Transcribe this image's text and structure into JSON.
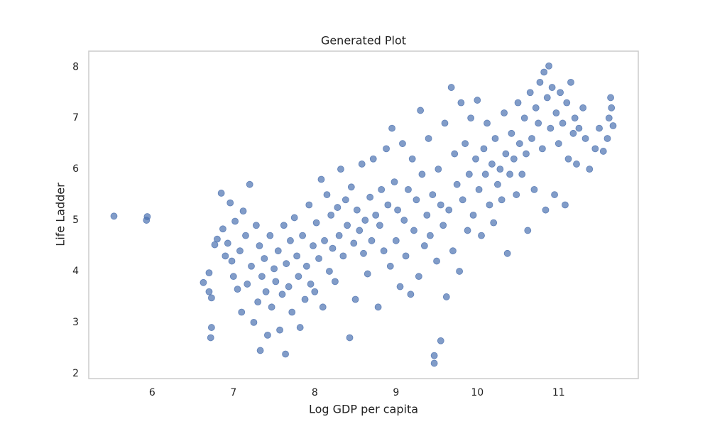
{
  "chart_data": {
    "type": "scatter",
    "title": "Generated Plot",
    "x_label": "Log GDP per capita",
    "y_label": "Life Ladder",
    "color": "#4c72b0",
    "grid": false,
    "xlim": [
      5.22,
      11.98
    ],
    "ylim": [
      1.9,
      8.31
    ],
    "xticks": [
      6,
      7,
      8,
      9,
      10,
      11
    ],
    "yticks": [
      2,
      3,
      4,
      5,
      6,
      7,
      8
    ],
    "x": [
      5.53,
      5.93,
      5.94,
      6.63,
      6.7,
      6.7,
      6.73,
      6.72,
      6.73,
      6.77,
      6.8,
      6.85,
      6.87,
      6.9,
      6.93,
      6.96,
      6.98,
      7.0,
      7.02,
      7.05,
      7.08,
      7.1,
      7.12,
      7.15,
      7.17,
      7.2,
      7.22,
      7.25,
      7.28,
      7.3,
      7.32,
      7.33,
      7.35,
      7.38,
      7.4,
      7.42,
      7.45,
      7.47,
      7.5,
      7.52,
      7.55,
      7.57,
      7.6,
      7.62,
      7.64,
      7.65,
      7.68,
      7.7,
      7.72,
      7.75,
      7.78,
      7.8,
      7.82,
      7.85,
      7.88,
      7.9,
      7.93,
      7.95,
      7.98,
      8.0,
      8.02,
      8.05,
      8.08,
      8.1,
      8.12,
      8.15,
      8.18,
      8.2,
      8.22,
      8.25,
      8.28,
      8.3,
      8.32,
      8.35,
      8.38,
      8.4,
      8.43,
      8.45,
      8.48,
      8.5,
      8.52,
      8.55,
      8.58,
      8.6,
      8.62,
      8.65,
      8.68,
      8.7,
      8.72,
      8.75,
      8.78,
      8.8,
      8.82,
      8.85,
      8.88,
      8.9,
      8.93,
      8.95,
      8.98,
      9.0,
      9.02,
      9.05,
      9.08,
      9.1,
      9.12,
      9.15,
      9.18,
      9.2,
      9.22,
      9.25,
      9.28,
      9.3,
      9.32,
      9.35,
      9.38,
      9.4,
      9.42,
      9.45,
      9.47,
      9.47,
      9.5,
      9.52,
      9.55,
      9.55,
      9.58,
      9.6,
      9.62,
      9.65,
      9.68,
      9.7,
      9.72,
      9.75,
      9.78,
      9.8,
      9.82,
      9.85,
      9.88,
      9.9,
      9.92,
      9.95,
      9.98,
      10.0,
      10.02,
      10.05,
      10.08,
      10.1,
      10.12,
      10.15,
      10.18,
      10.2,
      10.22,
      10.25,
      10.28,
      10.3,
      10.33,
      10.35,
      10.37,
      10.4,
      10.42,
      10.45,
      10.48,
      10.5,
      10.52,
      10.55,
      10.58,
      10.6,
      10.62,
      10.65,
      10.67,
      10.7,
      10.72,
      10.75,
      10.77,
      10.8,
      10.82,
      10.84,
      10.86,
      10.88,
      10.9,
      10.92,
      10.95,
      10.97,
      11.0,
      11.02,
      11.05,
      11.08,
      11.1,
      11.12,
      11.15,
      11.18,
      11.2,
      11.22,
      11.25,
      11.3,
      11.33,
      11.38,
      11.45,
      11.5,
      11.55,
      11.6,
      11.62,
      11.64,
      11.65,
      11.67
    ],
    "values": [
      5.08,
      5.0,
      5.07,
      3.78,
      3.97,
      3.6,
      3.48,
      2.7,
      2.9,
      4.52,
      4.63,
      5.53,
      4.83,
      4.3,
      4.55,
      5.34,
      4.2,
      3.9,
      4.98,
      3.65,
      4.4,
      3.2,
      5.18,
      4.7,
      3.75,
      5.7,
      4.1,
      3.0,
      4.9,
      3.4,
      4.5,
      2.45,
      3.9,
      4.25,
      3.6,
      2.75,
      4.7,
      3.3,
      4.05,
      3.8,
      4.4,
      2.85,
      3.55,
      4.9,
      2.38,
      4.15,
      3.7,
      4.6,
      3.2,
      5.05,
      4.3,
      3.9,
      2.9,
      4.7,
      3.45,
      4.1,
      5.3,
      3.75,
      4.5,
      3.6,
      4.95,
      4.25,
      5.8,
      3.3,
      4.6,
      5.5,
      4.0,
      5.1,
      4.45,
      3.8,
      5.25,
      4.7,
      6.0,
      4.3,
      5.4,
      4.9,
      2.7,
      5.65,
      4.55,
      3.45,
      5.2,
      4.8,
      6.1,
      4.35,
      5.0,
      3.95,
      5.45,
      4.6,
      6.2,
      5.1,
      3.3,
      4.9,
      5.6,
      4.4,
      6.4,
      5.3,
      4.1,
      6.8,
      5.75,
      4.6,
      5.2,
      3.7,
      6.5,
      5.0,
      4.3,
      5.6,
      3.55,
      6.2,
      4.8,
      5.4,
      3.9,
      7.15,
      5.9,
      4.5,
      5.1,
      6.6,
      4.7,
      5.5,
      2.2,
      2.35,
      4.2,
      6.0,
      2.64,
      5.3,
      4.9,
      6.9,
      3.5,
      5.2,
      7.6,
      4.4,
      6.3,
      5.7,
      4.0,
      7.3,
      5.4,
      6.5,
      4.8,
      5.9,
      7.0,
      5.1,
      6.2,
      7.35,
      5.6,
      4.7,
      6.4,
      5.9,
      6.9,
      5.3,
      6.1,
      4.95,
      6.6,
      5.7,
      6.0,
      5.4,
      7.1,
      6.3,
      4.35,
      5.9,
      6.7,
      6.2,
      5.5,
      7.3,
      6.5,
      5.9,
      7.0,
      6.3,
      4.8,
      7.5,
      6.6,
      5.6,
      7.2,
      6.9,
      7.7,
      6.4,
      7.9,
      5.2,
      7.4,
      8.02,
      6.8,
      7.6,
      5.5,
      7.1,
      6.5,
      7.5,
      6.9,
      5.3,
      7.3,
      6.2,
      7.7,
      6.7,
      7.0,
      6.1,
      6.8,
      7.2,
      6.6,
      6.0,
      6.4,
      6.8,
      6.35,
      6.6,
      7.0,
      7.4,
      7.2,
      6.85
    ]
  }
}
